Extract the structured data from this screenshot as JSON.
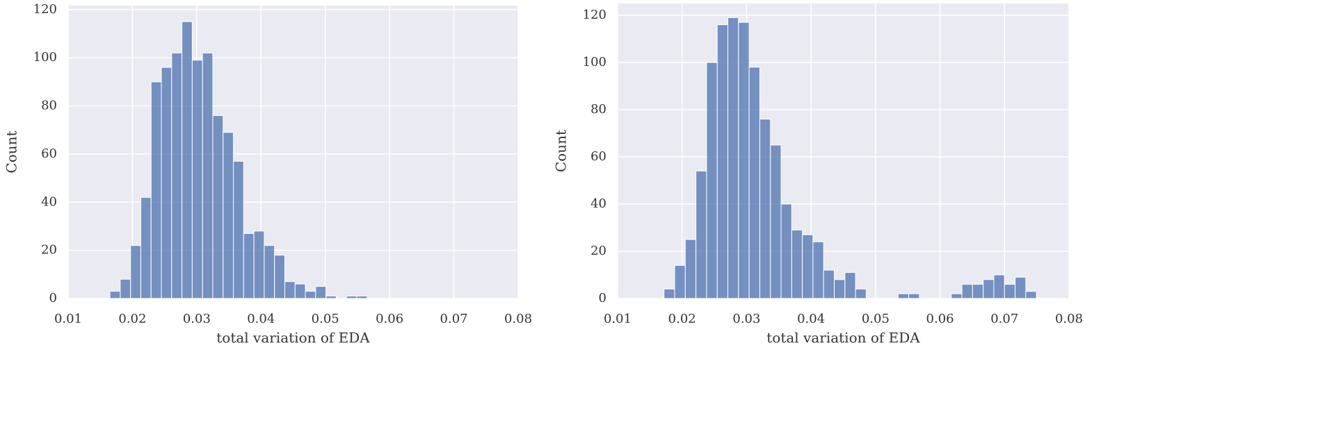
{
  "chart_data": [
    {
      "type": "histogram",
      "xlabel": "total variation of EDA",
      "ylabel": "Count",
      "color": "#4c72b0",
      "grid": true,
      "bins": [
        0.0165,
        0.0181,
        0.0197,
        0.0213,
        0.0229,
        0.0245,
        0.0261,
        0.0277,
        0.0293,
        0.0309,
        0.0325,
        0.0341,
        0.0357,
        0.0373,
        0.0389,
        0.0405,
        0.0421,
        0.0437,
        0.0453,
        0.0469,
        0.0485,
        0.0501,
        0.0517,
        0.0533,
        0.0549,
        0.0565
      ],
      "values": [
        3,
        8,
        22,
        42,
        90,
        96,
        102,
        115,
        99,
        102,
        76,
        69,
        57,
        27,
        28,
        22,
        18,
        7,
        6,
        3,
        5,
        1,
        0,
        1,
        1
      ],
      "xlim": [
        0.01,
        0.08
      ],
      "xticks": [
        0.01,
        0.02,
        0.03,
        0.04,
        0.05,
        0.06,
        0.07,
        0.08
      ],
      "ylim": [
        0,
        121.7
      ],
      "yticks": [
        0,
        20,
        40,
        60,
        80,
        100,
        120
      ]
    },
    {
      "type": "histogram",
      "xlabel": "total variation of EDA",
      "ylabel": "Count",
      "color": "#4c72b0",
      "grid": true,
      "bins": [
        0.0172,
        0.01885,
        0.0205,
        0.02215,
        0.0238,
        0.02545,
        0.0271,
        0.02875,
        0.0304,
        0.03205,
        0.0337,
        0.03535,
        0.037,
        0.03865,
        0.0403,
        0.04195,
        0.0436,
        0.04525,
        0.0469,
        0.04855,
        0.0502,
        0.05185,
        0.0535,
        0.05515,
        0.0568,
        0.05845,
        0.0601,
        0.06175,
        0.0634,
        0.06505,
        0.0667,
        0.06835,
        0.07,
        0.07165,
        0.0733,
        0.07495
      ],
      "values": [
        4,
        14,
        25,
        54,
        100,
        116,
        119,
        117,
        98,
        76,
        65,
        40,
        29,
        27,
        24,
        12,
        8,
        11,
        4,
        0,
        0,
        0,
        2,
        2,
        0,
        0,
        0,
        2,
        6,
        6,
        8,
        10,
        6,
        9,
        3
      ],
      "xlim": [
        0.01,
        0.08
      ],
      "xticks": [
        0.01,
        0.02,
        0.03,
        0.04,
        0.05,
        0.06,
        0.07,
        0.08
      ],
      "ylim": [
        0,
        125
      ],
      "yticks": [
        0,
        20,
        40,
        60,
        80,
        100,
        120
      ]
    }
  ]
}
